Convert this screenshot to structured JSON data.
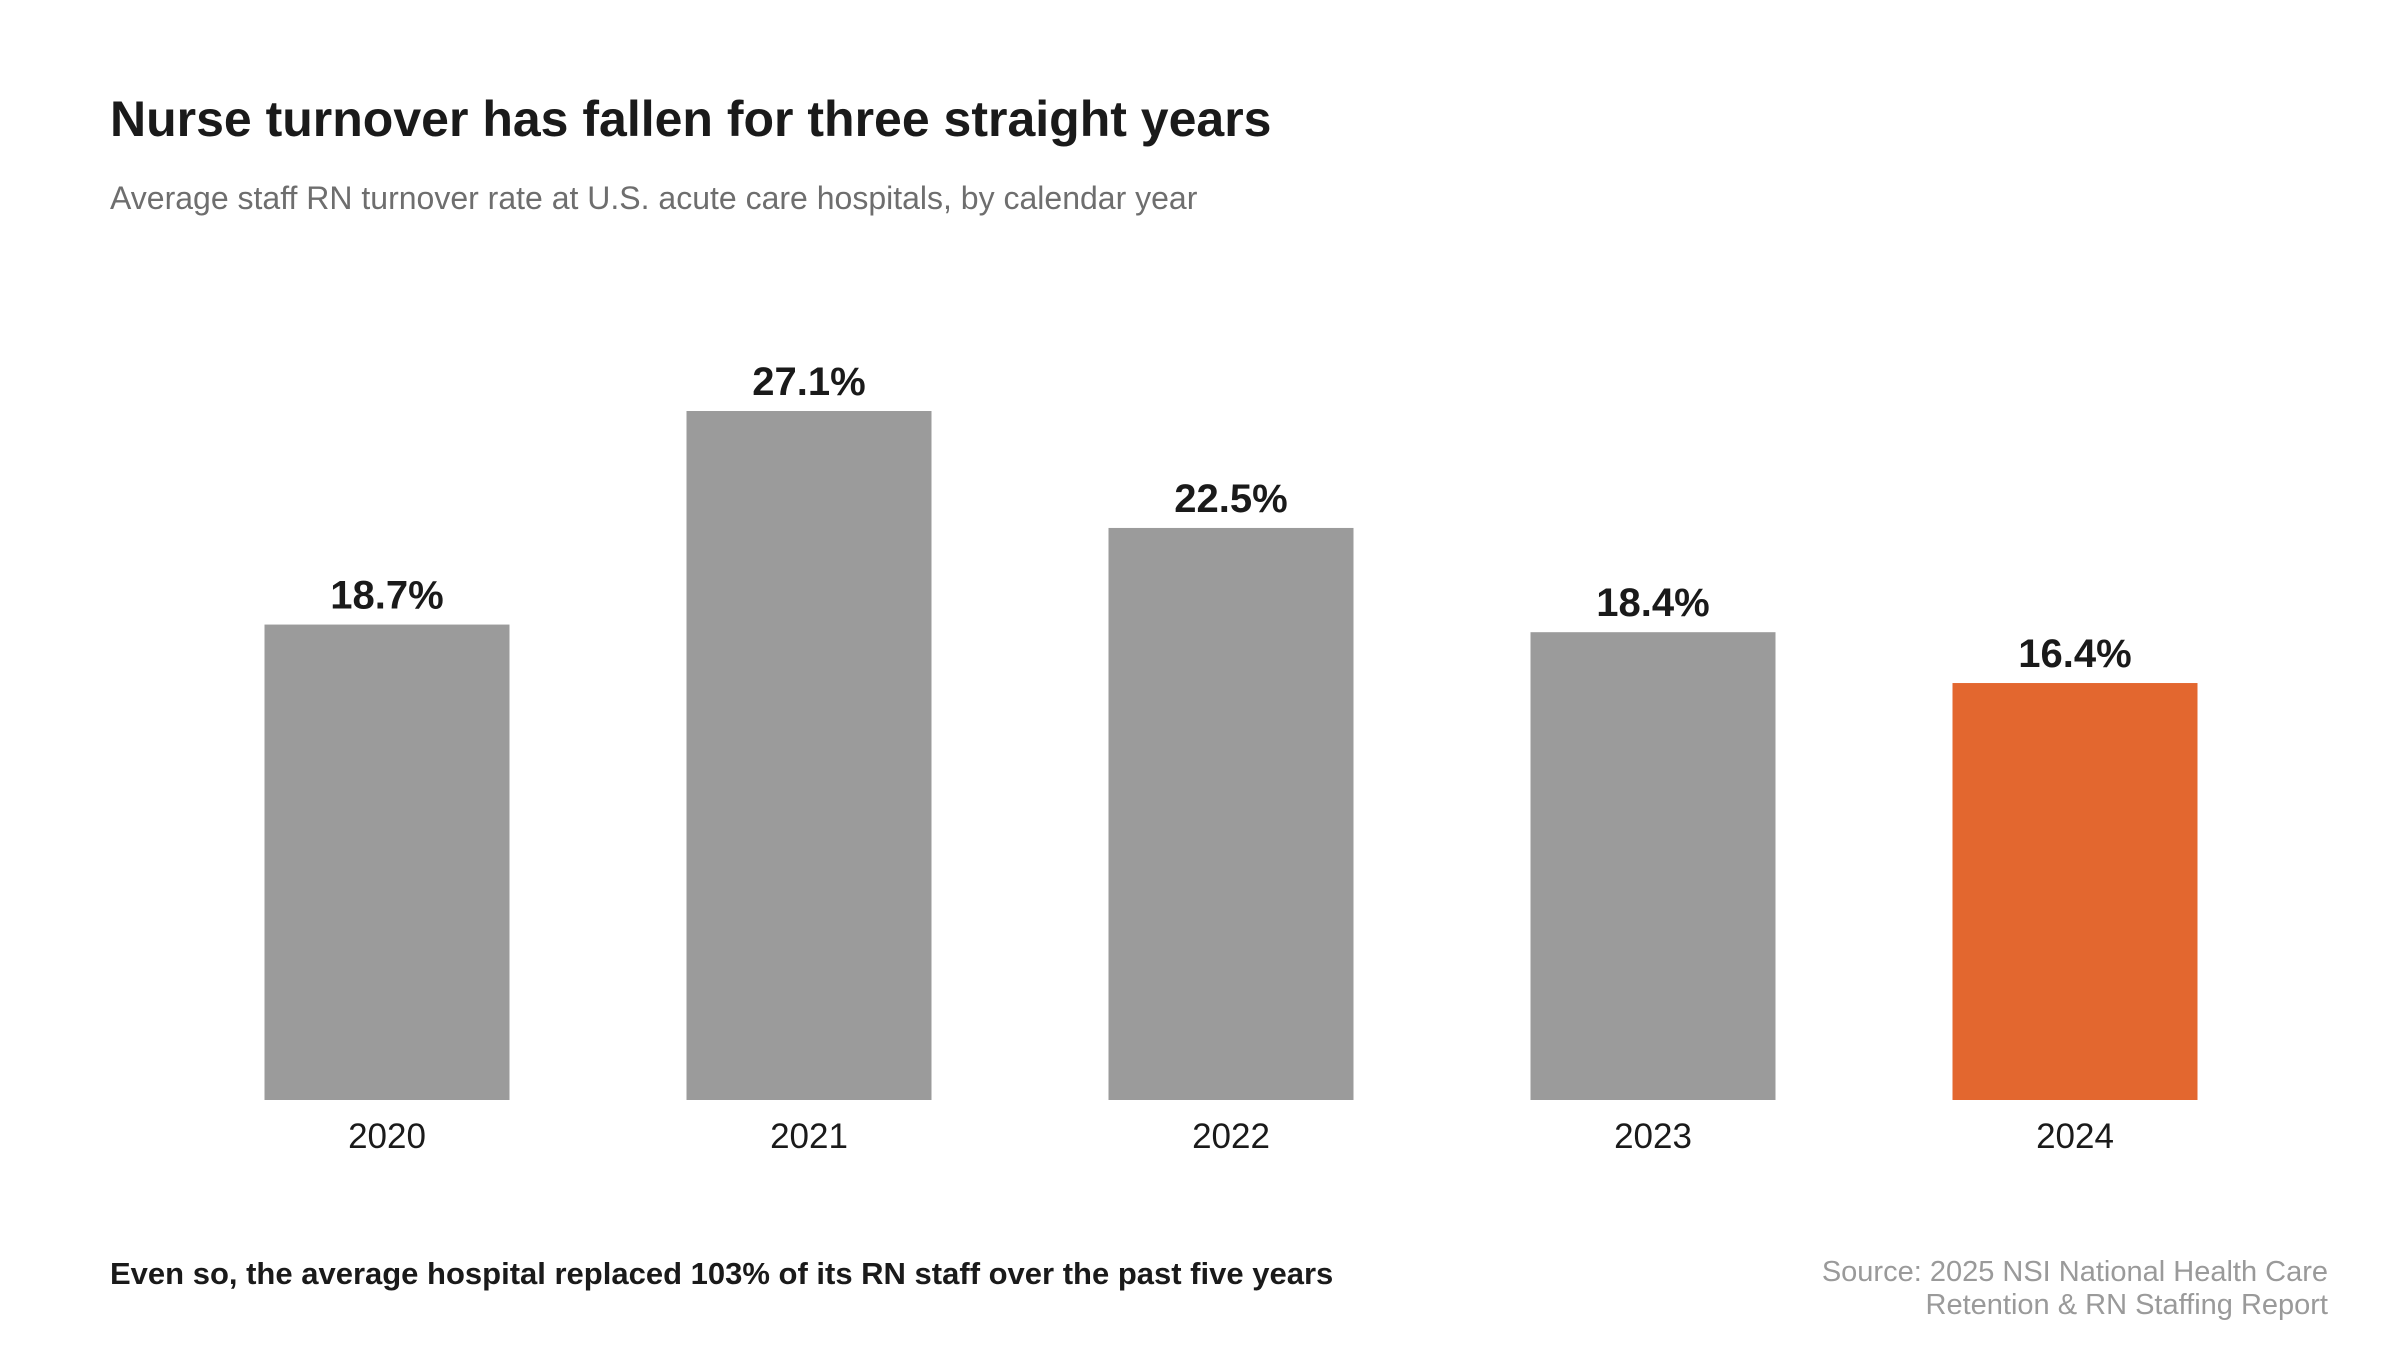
{
  "header": {
    "title": "Nurse turnover has fallen for three straight years",
    "subtitle": "Average staff RN turnover rate at U.S. acute care hospitals, by calendar year"
  },
  "footer": {
    "note": "Even so, the average hospital replaced 103% of its RN staff over the past five years",
    "source_line1": "Source: 2025 NSI National Health Care",
    "source_line2": "Retention & RN Staffing Report"
  },
  "colors": {
    "bar_default": "#9b9b9b",
    "bar_highlight": "#e3672f",
    "label_text": "#1a1a1a"
  },
  "chart_data": {
    "type": "bar",
    "title": "Nurse turnover has fallen for three straight years",
    "subtitle": "Average staff RN turnover rate at U.S. acute care hospitals, by calendar year",
    "xlabel": "",
    "ylabel": "",
    "categories": [
      "2020",
      "2021",
      "2022",
      "2023",
      "2024"
    ],
    "values": [
      18.7,
      27.1,
      22.5,
      18.4,
      16.4
    ],
    "value_labels": [
      "18.7%",
      "27.1%",
      "22.5%",
      "18.4%",
      "16.4%"
    ],
    "highlight_category": "2024",
    "ylim": [
      0,
      27.1
    ],
    "grid": false,
    "legend": "none"
  }
}
